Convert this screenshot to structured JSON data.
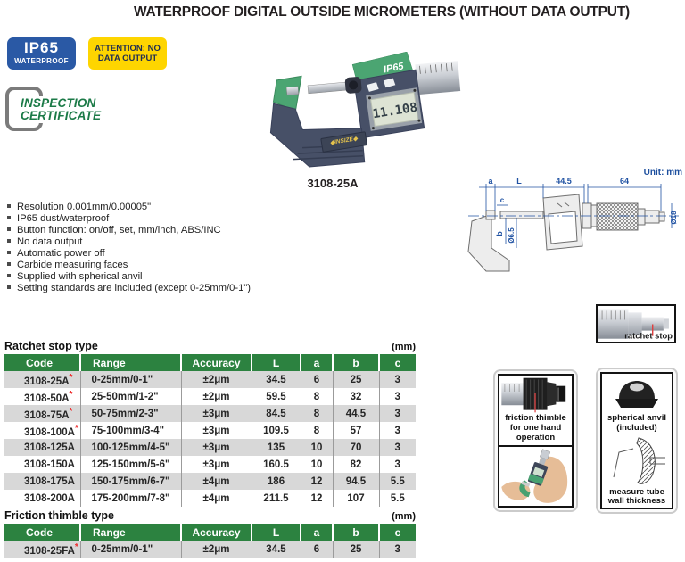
{
  "page": {
    "title": "WATERPROOF DIGITAL OUTSIDE MICROMETERS (WITHOUT DATA OUTPUT)"
  },
  "badges": {
    "ip65_line1": "IP65",
    "ip65_line2": "WATERPROOF",
    "attention_line1": "ATTENTION: NO",
    "attention_line2": "DATA OUTPUT"
  },
  "certificate": {
    "line1": "INSPECTION",
    "line2": "CERTIFICATE"
  },
  "product": {
    "model": "3108-25A",
    "ip65_mark": "IP65",
    "lcd": "11.108",
    "brand": "◆INSIZE◆"
  },
  "drawing": {
    "unit": "Unit: mm",
    "dim_a": "a",
    "dim_L": "L",
    "dim_445": "44.5",
    "dim_64": "64",
    "dim_c": "c",
    "dim_b": "b",
    "dim_d65": "Ø6.5",
    "dim_d18": "Ø18"
  },
  "features": [
    "Resolution 0.001mm/0.00005\"",
    "IP65 dust/waterproof",
    "Button function: on/off, set, mm/inch, ABS/INC",
    "No data output",
    "Automatic power off",
    "Carbide measuring faces",
    "Supplied with spherical anvil",
    "Setting standards are included (except 0-25mm/0-1\")"
  ],
  "tables": [
    {
      "title": "Ratchet stop type",
      "unit": "(mm)",
      "headers": [
        "Code",
        "Range",
        "Accuracy",
        "L",
        "a",
        "b",
        "c"
      ],
      "rows": [
        {
          "code": "3108-25A",
          "star": true,
          "cells": [
            "0-25mm/0-1\"",
            "±2μm",
            "34.5",
            "6",
            "25",
            "3"
          ]
        },
        {
          "code": "3108-50A",
          "star": true,
          "cells": [
            "25-50mm/1-2\"",
            "±2μm",
            "59.5",
            "8",
            "32",
            "3"
          ]
        },
        {
          "code": "3108-75A",
          "star": true,
          "cells": [
            "50-75mm/2-3\"",
            "±3μm",
            "84.5",
            "8",
            "44.5",
            "3"
          ]
        },
        {
          "code": "3108-100A",
          "star": true,
          "cells": [
            "75-100mm/3-4\"",
            "±3μm",
            "109.5",
            "8",
            "57",
            "3"
          ]
        },
        {
          "code": "3108-125A",
          "star": false,
          "cells": [
            "100-125mm/4-5\"",
            "±3μm",
            "135",
            "10",
            "70",
            "3"
          ]
        },
        {
          "code": "3108-150A",
          "star": false,
          "cells": [
            "125-150mm/5-6\"",
            "±3μm",
            "160.5",
            "10",
            "82",
            "3"
          ]
        },
        {
          "code": "3108-175A",
          "star": false,
          "cells": [
            "150-175mm/6-7\"",
            "±4μm",
            "186",
            "12",
            "94.5",
            "5.5"
          ]
        },
        {
          "code": "3108-200A",
          "star": false,
          "cells": [
            "175-200mm/7-8\"",
            "±4μm",
            "211.5",
            "12",
            "107",
            "5.5"
          ]
        }
      ]
    },
    {
      "title": "Friction thimble type",
      "unit": "(mm)",
      "headers": [
        "Code",
        "Range",
        "Accuracy",
        "L",
        "a",
        "b",
        "c"
      ],
      "rows": [
        {
          "code": "3108-25FA",
          "star": true,
          "cells": [
            "0-25mm/0-1\"",
            "±2μm",
            "34.5",
            "6",
            "25",
            "3"
          ]
        }
      ]
    }
  ],
  "side_boxes": {
    "ratchet": {
      "label": "ratchet stop"
    },
    "friction": {
      "label": "friction thimble for one hand operation"
    },
    "anvil": {
      "label1": "spherical anvil (included)",
      "label2": "measure tube wall thickness"
    }
  },
  "colors": {
    "accent_green": "#2c8240",
    "badge_blue": "#2a59a5",
    "badge_yellow": "#fed500",
    "star_red": "#ee2b2b",
    "dim_blue": "#2052a3",
    "row_gray": "#d8d8d8"
  }
}
